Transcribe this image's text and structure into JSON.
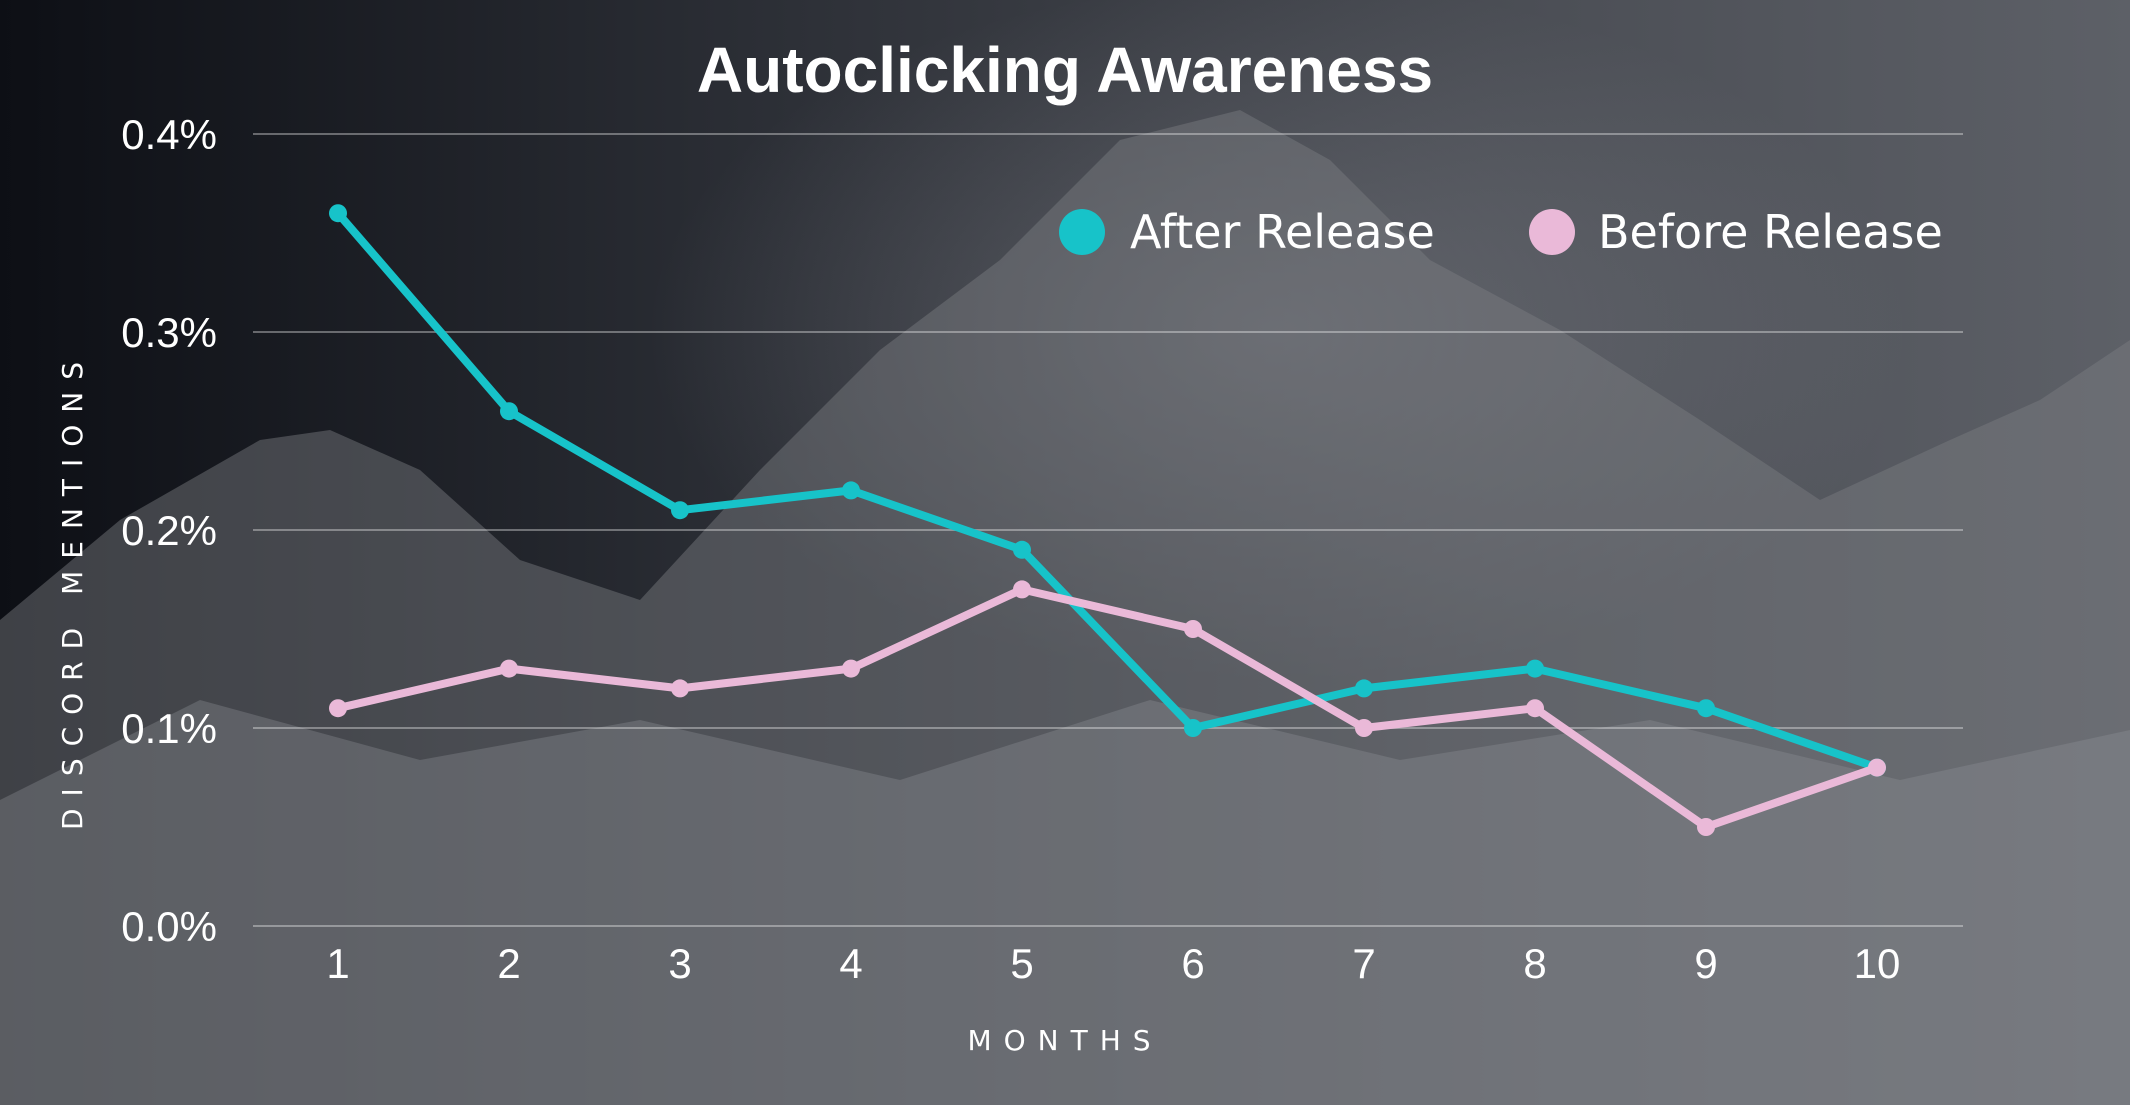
{
  "chart_data": {
    "type": "line",
    "title": "Autoclicking Awareness",
    "xlabel": "MONTHS",
    "ylabel": "DISCORD MENTIONS",
    "x": [
      1,
      2,
      3,
      4,
      5,
      6,
      7,
      8,
      9,
      10
    ],
    "ylim": [
      0,
      0.4
    ],
    "yticks": [
      "0.0%",
      "0.1%",
      "0.2%",
      "0.3%",
      "0.4%"
    ],
    "series": [
      {
        "name": "After Release",
        "color": "#17c3c9",
        "values": [
          0.36,
          0.26,
          0.21,
          0.22,
          0.19,
          0.1,
          0.12,
          0.13,
          0.11,
          0.08
        ]
      },
      {
        "name": "Before Release",
        "color": "#eab9d8",
        "values": [
          0.11,
          0.13,
          0.12,
          0.13,
          0.17,
          0.15,
          0.1,
          0.11,
          0.05,
          0.08
        ]
      }
    ],
    "grid": true,
    "legend": "top-right"
  }
}
